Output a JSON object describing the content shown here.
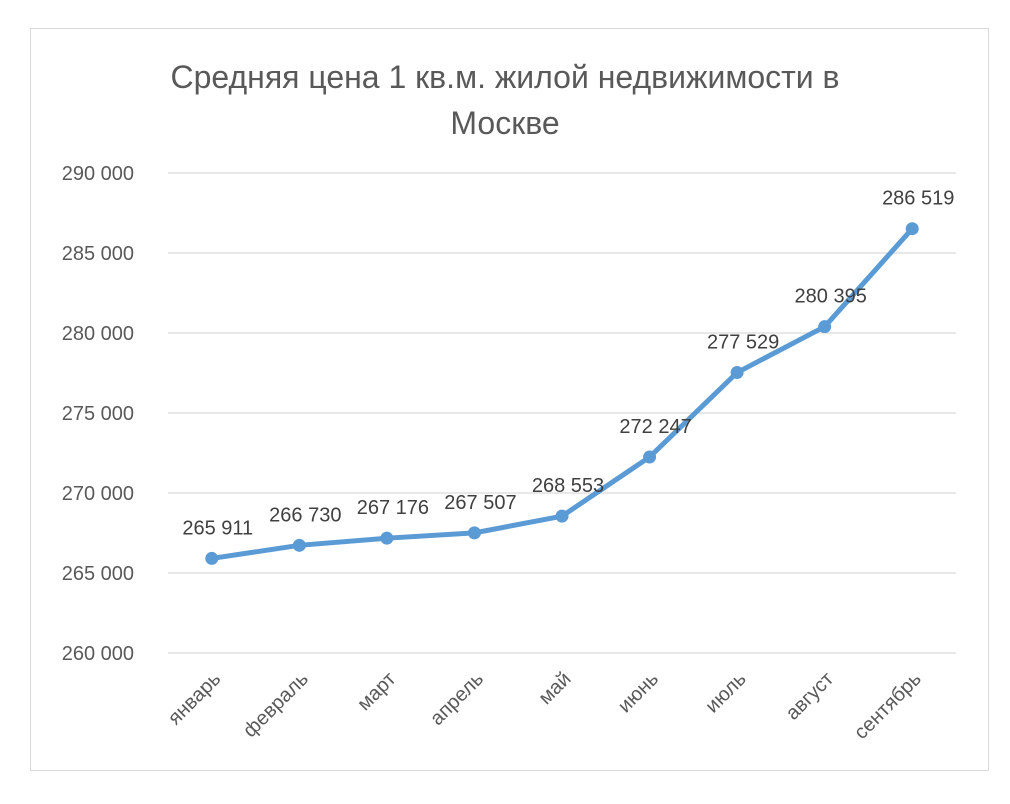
{
  "chart_data": {
    "type": "line",
    "title_lines": [
      "Средняя цена 1 кв.м. жилой недвижимости в",
      "Москве"
    ],
    "categories": [
      "январь",
      "февраль",
      "март",
      "апрель",
      "май",
      "июнь",
      "июль",
      "август",
      "сентябрь"
    ],
    "series": [
      {
        "values": [
          265911,
          266730,
          267176,
          267507,
          268553,
          272247,
          277529,
          280395,
          286519
        ]
      }
    ],
    "data_labels": [
      "265 911",
      "266 730",
      "267 176",
      "267 507",
      "268 553",
      "272 247",
      "277 529",
      "280 395",
      "286 519"
    ],
    "ylim": [
      260000,
      290000
    ],
    "yticks": [
      260000,
      265000,
      270000,
      275000,
      280000,
      285000,
      290000
    ],
    "ytick_labels": [
      "260 000",
      "265 000",
      "270 000",
      "275 000",
      "280 000",
      "285 000",
      "290 000"
    ],
    "grid": true,
    "legend": "none",
    "line_color": "#5b9bd5",
    "grid_color": "#d9d9d9"
  }
}
